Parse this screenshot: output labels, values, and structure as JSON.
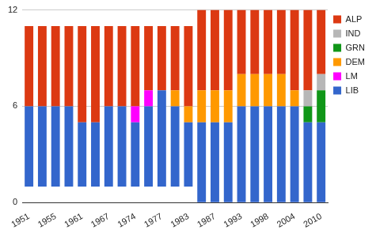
{
  "chart_data": {
    "type": "bar",
    "stacked": true,
    "categories": [
      "1951",
      null,
      "1955",
      null,
      "1961",
      null,
      "1967",
      null,
      "1974",
      null,
      "1977",
      null,
      "1983",
      null,
      "1987",
      null,
      "1993",
      null,
      "1998",
      null,
      "2004",
      null,
      "2010"
    ],
    "bar_bases": [
      1,
      1,
      1,
      1,
      1,
      1,
      1,
      1,
      1,
      1,
      1,
      1,
      1,
      0,
      0,
      0,
      0,
      0,
      0,
      0,
      0,
      0,
      0
    ],
    "series": [
      {
        "name": "LIB",
        "color": "#3366cc",
        "values": [
          5,
          5,
          5,
          5,
          4,
          4,
          5,
          5,
          4,
          5,
          6,
          5,
          4,
          5,
          5,
          5,
          6,
          6,
          6,
          6,
          6,
          5,
          5
        ]
      },
      {
        "name": "LM",
        "color": "#ff00ff",
        "values": [
          0,
          0,
          0,
          0,
          0,
          0,
          0,
          0,
          1,
          1,
          0,
          0,
          0,
          0,
          0,
          0,
          0,
          0,
          0,
          0,
          0,
          0,
          0
        ]
      },
      {
        "name": "DEM",
        "color": "#ff9900",
        "values": [
          0,
          0,
          0,
          0,
          0,
          0,
          0,
          0,
          0,
          0,
          0,
          1,
          1,
          2,
          2,
          2,
          2,
          2,
          2,
          2,
          1,
          0,
          0
        ]
      },
      {
        "name": "GRN",
        "color": "#109618",
        "values": [
          0,
          0,
          0,
          0,
          0,
          0,
          0,
          0,
          0,
          0,
          0,
          0,
          0,
          0,
          0,
          0,
          0,
          0,
          0,
          0,
          0,
          1,
          2
        ]
      },
      {
        "name": "IND",
        "color": "#b7b7b7",
        "values": [
          0,
          0,
          0,
          0,
          0,
          0,
          0,
          0,
          0,
          0,
          0,
          0,
          0,
          0,
          0,
          0,
          0,
          0,
          0,
          0,
          0,
          1,
          1
        ]
      },
      {
        "name": "ALP",
        "color": "#dc3912",
        "values": [
          5,
          5,
          5,
          5,
          6,
          6,
          5,
          5,
          5,
          4,
          4,
          4,
          5,
          5,
          5,
          5,
          4,
          4,
          4,
          4,
          5,
          5,
          4
        ]
      }
    ],
    "ylim": [
      0,
      12
    ],
    "yticks": [
      0,
      6,
      12
    ],
    "grid": true,
    "legend": "right"
  }
}
